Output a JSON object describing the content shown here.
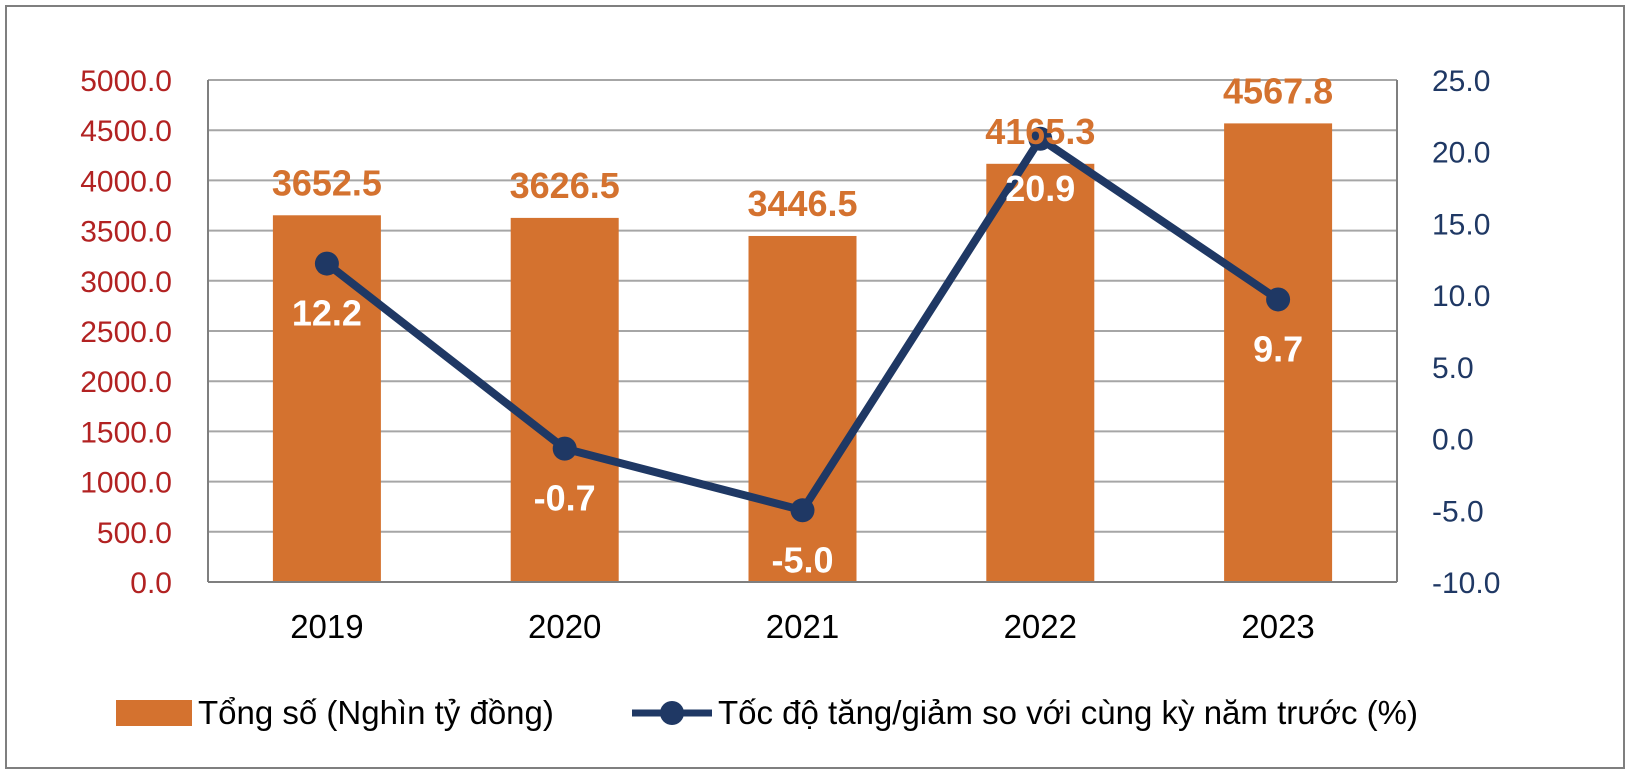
{
  "colors": {
    "bar": "#D4722F",
    "line": "#1F3864",
    "left_axis_text": "#B22222",
    "right_axis_text": "#1F3864",
    "bar_label": "#D4722F",
    "line_label": "#FFFFFF",
    "grid": "#A6A6A6",
    "frame": "#7F7F7F",
    "text": "#000000"
  },
  "chart_data": {
    "type": "bar",
    "categories": [
      "2019",
      "2020",
      "2021",
      "2022",
      "2023"
    ],
    "series": [
      {
        "name": "Tổng số (Nghìn tỷ đồng)",
        "type": "bar",
        "axis": "left",
        "values": [
          3652.5,
          3626.5,
          3446.5,
          4165.3,
          4567.8
        ],
        "labels": [
          "3652.5",
          "3626.5",
          "3446.5",
          "4165.3",
          "4567.8"
        ]
      },
      {
        "name": "Tốc độ tăng/giảm so với cùng kỳ năm trước (%)",
        "type": "line",
        "axis": "right",
        "values": [
          12.2,
          -0.7,
          -5.0,
          20.9,
          9.7
        ],
        "labels": [
          "12.2",
          "-0.7",
          "-5.0",
          "20.9",
          "9.7"
        ]
      }
    ],
    "y_left": {
      "ylim": [
        0,
        5000
      ],
      "ticks": [
        0,
        500,
        1000,
        1500,
        2000,
        2500,
        3000,
        3500,
        4000,
        4500,
        5000
      ],
      "tick_labels": [
        "0.0",
        "500.0",
        "1000.0",
        "1500.0",
        "2000.0",
        "2500.0",
        "3000.0",
        "3500.0",
        "4000.0",
        "4500.0",
        "5000.0"
      ]
    },
    "y_right": {
      "ylim": [
        -10,
        25
      ],
      "ticks": [
        -10,
        -5,
        0,
        5,
        10,
        15,
        20,
        25
      ],
      "tick_labels": [
        "-10.0",
        "-5.0",
        "0.0",
        "5.0",
        "10.0",
        "15.0",
        "20.0",
        "25.0"
      ]
    },
    "grid": true,
    "legend": "bottom"
  }
}
